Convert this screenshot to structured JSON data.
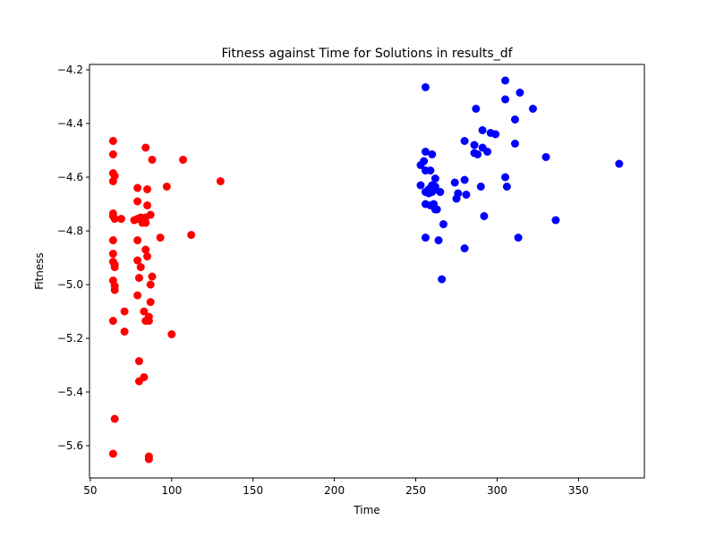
{
  "chart_data": {
    "type": "scatter",
    "title": "Fitness against Time for Solutions in results_df",
    "xlabel": "Time",
    "ylabel": "Fitness",
    "xlim": [
      49.5,
      390.5
    ],
    "ylim": [
      -5.72,
      -4.18
    ],
    "xticks": [
      50,
      100,
      150,
      200,
      250,
      300,
      350
    ],
    "yticks": [
      -4.2,
      -4.4,
      -4.6,
      -4.8,
      -5.0,
      -5.2,
      -5.4,
      -5.6
    ],
    "series": [
      {
        "name": "red",
        "color": "#ff0000",
        "points": [
          [
            64,
            -4.465
          ],
          [
            64,
            -4.515
          ],
          [
            64,
            -4.585
          ],
          [
            64,
            -4.615
          ],
          [
            65,
            -4.595
          ],
          [
            64,
            -4.735
          ],
          [
            64,
            -4.745
          ],
          [
            65,
            -4.755
          ],
          [
            69,
            -4.755
          ],
          [
            64,
            -4.835
          ],
          [
            64,
            -4.885
          ],
          [
            64,
            -4.915
          ],
          [
            65,
            -4.925
          ],
          [
            65,
            -4.935
          ],
          [
            64,
            -4.985
          ],
          [
            65,
            -5.005
          ],
          [
            65,
            -5.02
          ],
          [
            64,
            -5.135
          ],
          [
            71,
            -5.1
          ],
          [
            71,
            -5.175
          ],
          [
            65,
            -5.5
          ],
          [
            64,
            -5.63
          ],
          [
            84,
            -4.49
          ],
          [
            88,
            -4.535
          ],
          [
            79,
            -4.64
          ],
          [
            85,
            -4.645
          ],
          [
            79,
            -4.69
          ],
          [
            85,
            -4.705
          ],
          [
            81,
            -4.75
          ],
          [
            84,
            -4.75
          ],
          [
            77,
            -4.76
          ],
          [
            79,
            -4.755
          ],
          [
            82,
            -4.77
          ],
          [
            84,
            -4.77
          ],
          [
            87,
            -4.74
          ],
          [
            79,
            -4.835
          ],
          [
            84,
            -4.87
          ],
          [
            85,
            -4.895
          ],
          [
            79,
            -4.91
          ],
          [
            81,
            -4.935
          ],
          [
            88,
            -4.97
          ],
          [
            80,
            -4.975
          ],
          [
            87,
            -5.0
          ],
          [
            79,
            -5.04
          ],
          [
            87,
            -5.065
          ],
          [
            83,
            -5.1
          ],
          [
            86,
            -5.12
          ],
          [
            84,
            -5.135
          ],
          [
            86,
            -5.135
          ],
          [
            80,
            -5.285
          ],
          [
            83,
            -5.345
          ],
          [
            80,
            -5.36
          ],
          [
            86,
            -5.64
          ],
          [
            86,
            -5.65
          ],
          [
            97,
            -4.635
          ],
          [
            93,
            -4.825
          ],
          [
            100,
            -5.185
          ],
          [
            107,
            -4.535
          ],
          [
            112,
            -4.815
          ],
          [
            130,
            -4.615
          ]
        ]
      },
      {
        "name": "blue",
        "color": "#0000ff",
        "points": [
          [
            256,
            -4.265
          ],
          [
            305,
            -4.24
          ],
          [
            314,
            -4.285
          ],
          [
            305,
            -4.31
          ],
          [
            322,
            -4.345
          ],
          [
            287,
            -4.345
          ],
          [
            311,
            -4.385
          ],
          [
            291,
            -4.425
          ],
          [
            296,
            -4.435
          ],
          [
            299,
            -4.44
          ],
          [
            280,
            -4.465
          ],
          [
            311,
            -4.475
          ],
          [
            286,
            -4.48
          ],
          [
            291,
            -4.49
          ],
          [
            294,
            -4.505
          ],
          [
            286,
            -4.51
          ],
          [
            288,
            -4.515
          ],
          [
            256,
            -4.505
          ],
          [
            260,
            -4.515
          ],
          [
            330,
            -4.525
          ],
          [
            375,
            -4.55
          ],
          [
            255,
            -4.54
          ],
          [
            253,
            -4.555
          ],
          [
            256,
            -4.575
          ],
          [
            259,
            -4.575
          ],
          [
            305,
            -4.6
          ],
          [
            262,
            -4.605
          ],
          [
            280,
            -4.61
          ],
          [
            274,
            -4.62
          ],
          [
            290,
            -4.635
          ],
          [
            306,
            -4.635
          ],
          [
            253,
            -4.63
          ],
          [
            260,
            -4.63
          ],
          [
            262,
            -4.635
          ],
          [
            258,
            -4.645
          ],
          [
            262,
            -4.645
          ],
          [
            265,
            -4.655
          ],
          [
            256,
            -4.655
          ],
          [
            258,
            -4.66
          ],
          [
            260,
            -4.655
          ],
          [
            276,
            -4.66
          ],
          [
            281,
            -4.665
          ],
          [
            275,
            -4.68
          ],
          [
            256,
            -4.7
          ],
          [
            261,
            -4.7
          ],
          [
            259,
            -4.705
          ],
          [
            262,
            -4.72
          ],
          [
            263,
            -4.72
          ],
          [
            292,
            -4.745
          ],
          [
            336,
            -4.76
          ],
          [
            267,
            -4.775
          ],
          [
            256,
            -4.825
          ],
          [
            264,
            -4.835
          ],
          [
            313,
            -4.825
          ],
          [
            280,
            -4.865
          ],
          [
            266,
            -4.98
          ]
        ]
      }
    ]
  }
}
